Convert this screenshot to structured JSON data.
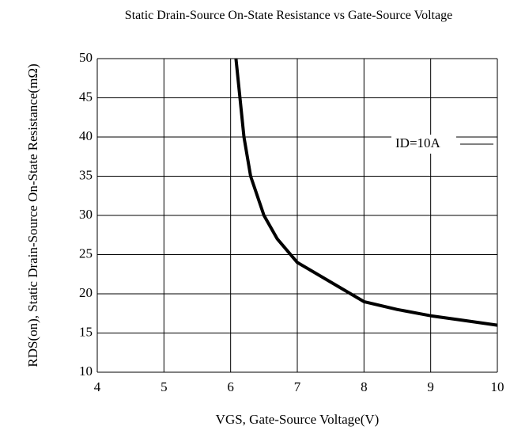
{
  "chart_data": {
    "type": "line",
    "title": "Static Drain-Source On-State Resistance vs Gate-Source Voltage",
    "x_label": "VGS, Gate-Source Voltage(V)",
    "y_label": "RDS(on), Static Drain-Source On-State Resistance(mΩ)",
    "x": [
      6.08,
      6.2,
      6.3,
      6.5,
      6.7,
      7,
      7.5,
      8,
      8.5,
      9,
      9.5,
      10
    ],
    "series": [
      {
        "name": "ID=10A",
        "color": "#000000",
        "values": [
          50,
          40,
          35,
          30,
          27,
          24,
          21.5,
          19,
          18,
          17.2,
          16.6,
          16
        ]
      }
    ],
    "xlim": [
      4,
      10
    ],
    "xticks": [
      4,
      5,
      6,
      7,
      8,
      9,
      10
    ],
    "ylim": [
      10,
      50
    ],
    "yticks": [
      10,
      15,
      20,
      25,
      30,
      35,
      40,
      45,
      50
    ],
    "grid": true,
    "legend": "upper right"
  }
}
